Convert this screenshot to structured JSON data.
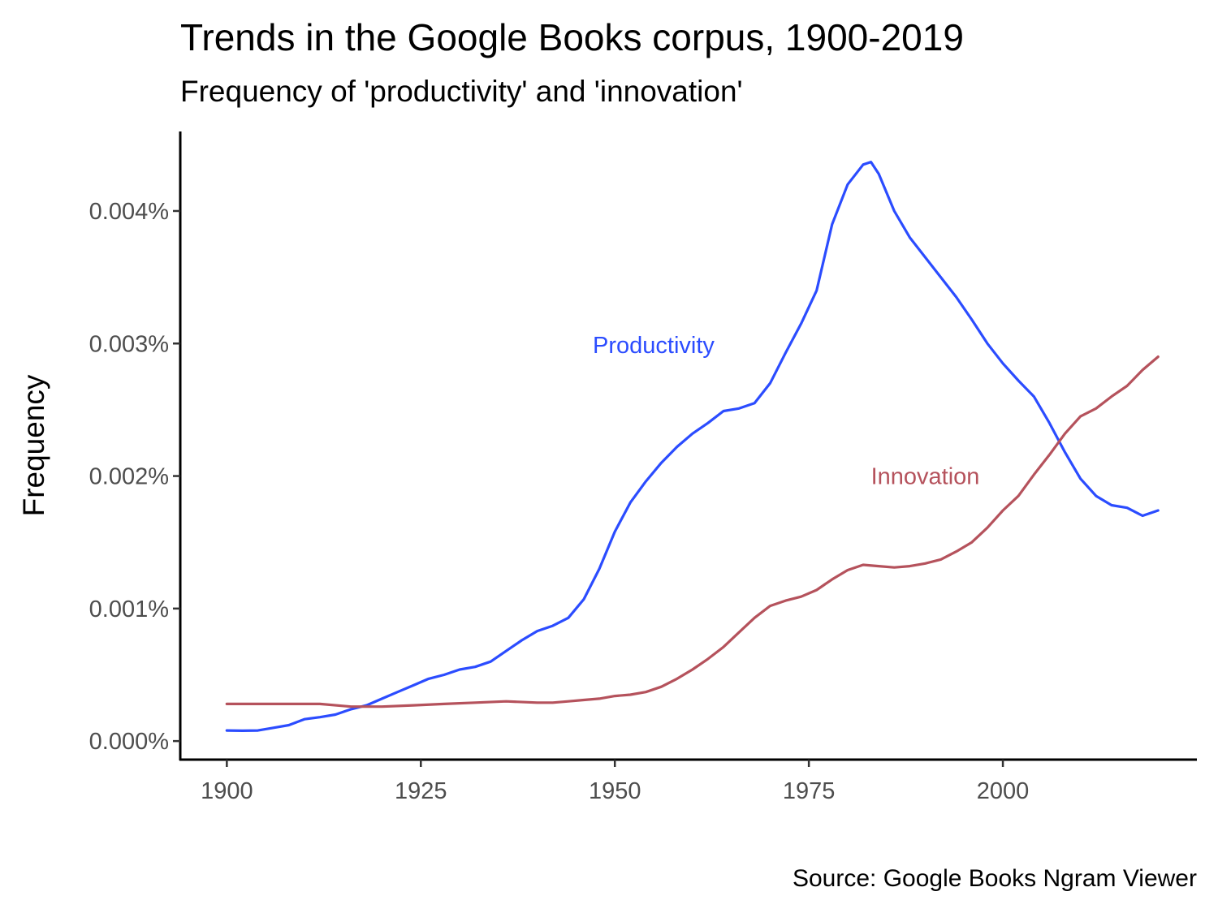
{
  "title": "Trends in the Google Books corpus, 1900-2019",
  "subtitle": "Frequency of 'productivity' and 'innovation'",
  "caption": "Source: Google Books Ngram Viewer",
  "chart_data": {
    "type": "line",
    "xlabel": "",
    "ylabel": "Frequency",
    "xlim": [
      1894,
      2025
    ],
    "ylim": [
      -0.00014,
      0.0046
    ],
    "x_ticks": [
      1900,
      1925,
      1950,
      1975,
      2000
    ],
    "x_tick_labels": [
      "1900",
      "1925",
      "1950",
      "1975",
      "2000"
    ],
    "y_ticks": [
      0.0,
      0.001,
      0.002,
      0.003,
      0.004
    ],
    "y_tick_labels": [
      "0.000%",
      "0.001%",
      "0.002%",
      "0.003%",
      "0.004%"
    ],
    "grid": false,
    "legend": "none",
    "series": [
      {
        "name": "Productivity",
        "color": "#2b4cff",
        "label_at": [
          1955,
          0.00299
        ],
        "points": [
          [
            1900,
            8e-05
          ],
          [
            1902,
            7.8e-05
          ],
          [
            1904,
            8e-05
          ],
          [
            1906,
            0.0001
          ],
          [
            1908,
            0.00012
          ],
          [
            1910,
            0.000165
          ],
          [
            1912,
            0.00018
          ],
          [
            1914,
            0.0002
          ],
          [
            1916,
            0.00024
          ],
          [
            1918,
            0.00027
          ],
          [
            1920,
            0.00032
          ],
          [
            1922,
            0.00037
          ],
          [
            1924,
            0.00042
          ],
          [
            1926,
            0.00047
          ],
          [
            1928,
            0.0005
          ],
          [
            1930,
            0.00054
          ],
          [
            1932,
            0.00056
          ],
          [
            1934,
            0.0006
          ],
          [
            1936,
            0.00068
          ],
          [
            1938,
            0.00076
          ],
          [
            1940,
            0.00083
          ],
          [
            1942,
            0.00087
          ],
          [
            1944,
            0.00093
          ],
          [
            1946,
            0.00107
          ],
          [
            1948,
            0.0013
          ],
          [
            1950,
            0.00158
          ],
          [
            1952,
            0.0018
          ],
          [
            1954,
            0.00196
          ],
          [
            1956,
            0.0021
          ],
          [
            1958,
            0.00222
          ],
          [
            1960,
            0.00232
          ],
          [
            1962,
            0.0024
          ],
          [
            1964,
            0.00249
          ],
          [
            1966,
            0.00251
          ],
          [
            1968,
            0.00255
          ],
          [
            1970,
            0.0027
          ],
          [
            1972,
            0.00293
          ],
          [
            1974,
            0.00315
          ],
          [
            1976,
            0.0034
          ],
          [
            1978,
            0.0039
          ],
          [
            1980,
            0.0042
          ],
          [
            1982,
            0.00435
          ],
          [
            1983,
            0.00437
          ],
          [
            1984,
            0.00428
          ],
          [
            1986,
            0.004
          ],
          [
            1988,
            0.0038
          ],
          [
            1990,
            0.00365
          ],
          [
            1992,
            0.0035
          ],
          [
            1994,
            0.00335
          ],
          [
            1996,
            0.00318
          ],
          [
            1998,
            0.003
          ],
          [
            2000,
            0.00285
          ],
          [
            2002,
            0.00272
          ],
          [
            2004,
            0.0026
          ],
          [
            2006,
            0.0024
          ],
          [
            2008,
            0.00218
          ],
          [
            2010,
            0.00198
          ],
          [
            2012,
            0.00185
          ],
          [
            2014,
            0.00178
          ],
          [
            2016,
            0.00176
          ],
          [
            2018,
            0.0017
          ],
          [
            2020,
            0.00174
          ]
        ]
      },
      {
        "name": "Innovation",
        "color": "#b5525c",
        "label_at": [
          1990,
          0.002
        ],
        "points": [
          [
            1900,
            0.00028
          ],
          [
            1904,
            0.00028
          ],
          [
            1908,
            0.00028
          ],
          [
            1912,
            0.00028
          ],
          [
            1916,
            0.00026
          ],
          [
            1920,
            0.00026
          ],
          [
            1924,
            0.00027
          ],
          [
            1928,
            0.00028
          ],
          [
            1932,
            0.00029
          ],
          [
            1936,
            0.0003
          ],
          [
            1940,
            0.00029
          ],
          [
            1942,
            0.00029
          ],
          [
            1944,
            0.0003
          ],
          [
            1946,
            0.00031
          ],
          [
            1948,
            0.00032
          ],
          [
            1950,
            0.00034
          ],
          [
            1952,
            0.00035
          ],
          [
            1954,
            0.00037
          ],
          [
            1956,
            0.00041
          ],
          [
            1958,
            0.00047
          ],
          [
            1960,
            0.00054
          ],
          [
            1962,
            0.00062
          ],
          [
            1964,
            0.00071
          ],
          [
            1966,
            0.00082
          ],
          [
            1968,
            0.00093
          ],
          [
            1970,
            0.00102
          ],
          [
            1972,
            0.00106
          ],
          [
            1974,
            0.00109
          ],
          [
            1976,
            0.00114
          ],
          [
            1978,
            0.00122
          ],
          [
            1980,
            0.00129
          ],
          [
            1982,
            0.00133
          ],
          [
            1984,
            0.00132
          ],
          [
            1986,
            0.00131
          ],
          [
            1988,
            0.00132
          ],
          [
            1990,
            0.00134
          ],
          [
            1992,
            0.00137
          ],
          [
            1994,
            0.00143
          ],
          [
            1996,
            0.0015
          ],
          [
            1998,
            0.00161
          ],
          [
            2000,
            0.00174
          ],
          [
            2002,
            0.00185
          ],
          [
            2004,
            0.00201
          ],
          [
            2006,
            0.00216
          ],
          [
            2008,
            0.00232
          ],
          [
            2010,
            0.00245
          ],
          [
            2012,
            0.00251
          ],
          [
            2014,
            0.0026
          ],
          [
            2016,
            0.00268
          ],
          [
            2018,
            0.0028
          ],
          [
            2020,
            0.0029
          ]
        ]
      }
    ]
  }
}
